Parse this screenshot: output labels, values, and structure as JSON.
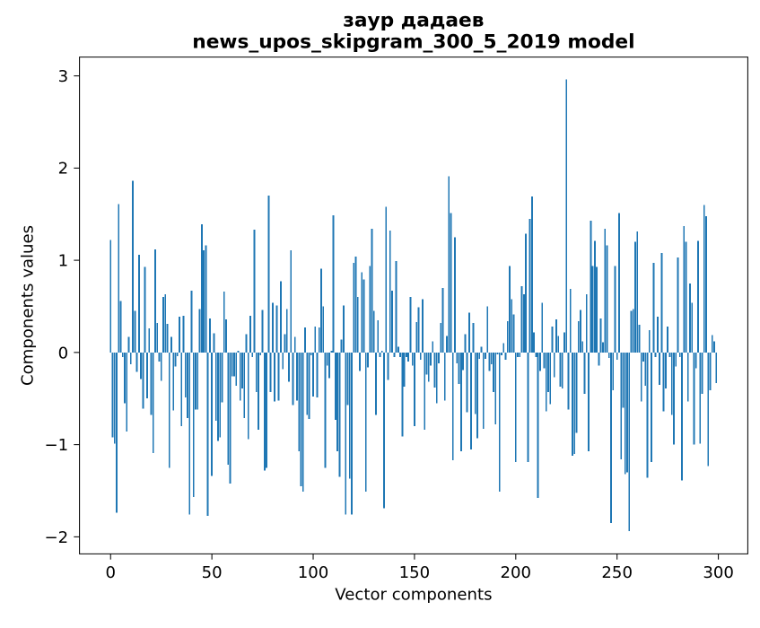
{
  "chart_data": {
    "type": "bar",
    "title": "заур дадаев",
    "subtitle": "news_upos_skipgram_300_5_2019 model",
    "xlabel": "Vector components",
    "ylabel": "Components values",
    "x_tick_labels": [
      "0",
      "50",
      "100",
      "150",
      "200",
      "250",
      "300"
    ],
    "x_tick_values": [
      0,
      50,
      100,
      150,
      200,
      250,
      300
    ],
    "y_tick_labels": [
      "−2",
      "−1",
      "0",
      "1",
      "2",
      "3"
    ],
    "y_tick_values": [
      -2,
      -1,
      0,
      1,
      2,
      3
    ],
    "xlim": [
      -15.39,
      314.39
    ],
    "ylim": [
      -2.185,
      3.205
    ],
    "bar_color": "#1f77b4",
    "bar_width": 0.8,
    "n_components": 300,
    "grid": false,
    "legend": null,
    "values": [
      1.22,
      -0.92,
      -0.99,
      -1.74,
      1.61,
      0.56,
      -0.05,
      -0.55,
      -0.86,
      0.17,
      -0.13,
      1.86,
      0.45,
      -0.21,
      1.06,
      -0.29,
      -0.61,
      0.93,
      -0.5,
      0.26,
      -0.68,
      -1.09,
      1.12,
      0.32,
      -0.1,
      -0.31,
      0.6,
      0.63,
      0.31,
      -1.25,
      0.17,
      -0.63,
      -0.15,
      -0.04,
      0.39,
      -0.8,
      0.4,
      -0.49,
      -0.71,
      -1.76,
      0.67,
      -1.57,
      -0.62,
      -0.62,
      0.47,
      1.39,
      1.11,
      1.16,
      -1.77,
      0.37,
      -1.34,
      0.21,
      -0.74,
      -0.96,
      -0.92,
      -0.54,
      0.66,
      0.36,
      -1.22,
      -1.42,
      -0.26,
      -0.26,
      -0.36,
      0.02,
      -0.52,
      -0.39,
      -0.71,
      0.2,
      -0.94,
      0.4,
      -0.05,
      1.33,
      -0.43,
      -0.84,
      -0.03,
      0.46,
      -1.28,
      -1.25,
      1.7,
      -0.43,
      0.54,
      -0.53,
      0.51,
      -0.52,
      0.77,
      -0.18,
      0.2,
      0.47,
      -0.32,
      1.11,
      -0.57,
      0.17,
      -0.52,
      -1.07,
      -1.45,
      -1.51,
      0.27,
      -0.68,
      -0.72,
      -0.03,
      -0.48,
      0.28,
      -0.49,
      0.27,
      0.91,
      0.5,
      -1.25,
      -0.14,
      -0.28,
      0.02,
      1.49,
      -0.73,
      -1.07,
      -1.35,
      0.14,
      0.51,
      -1.76,
      -0.57,
      -1.37,
      -1.76,
      0.97,
      1.04,
      0.6,
      -0.2,
      0.87,
      0.79,
      -1.51,
      -0.16,
      0.94,
      1.34,
      0.45,
      -0.68,
      0.35,
      -0.05,
      0.02,
      -1.69,
      1.58,
      -0.3,
      1.32,
      0.67,
      -0.05,
      0.99,
      0.06,
      -0.05,
      -0.91,
      -0.37,
      -0.05,
      -0.1,
      0.6,
      -0.14,
      -0.8,
      0.33,
      0.49,
      -0.08,
      0.58,
      -0.84,
      -0.24,
      -0.32,
      -0.14,
      0.12,
      -0.38,
      -0.55,
      -0.12,
      0.32,
      0.7,
      -0.52,
      0.18,
      1.91,
      1.51,
      -1.17,
      1.25,
      -0.12,
      -0.34,
      -1.07,
      -0.19,
      0.2,
      -0.65,
      0.43,
      -1.05,
      0.32,
      -0.67,
      -0.93,
      -0.07,
      0.06,
      -0.83,
      -0.07,
      0.5,
      -0.2,
      -0.13,
      -0.43,
      -0.78,
      -0.02,
      -1.51,
      -0.03,
      0.1,
      -0.08,
      0.34,
      0.94,
      0.58,
      0.41,
      -1.19,
      -0.05,
      -0.05,
      0.72,
      0.63,
      1.29,
      -1.19,
      1.45,
      1.69,
      0.22,
      -0.05,
      -1.58,
      -0.2,
      0.54,
      -0.17,
      -0.64,
      -0.43,
      -0.56,
      0.28,
      -0.27,
      0.36,
      0.18,
      -0.37,
      -0.39,
      0.22,
      2.96,
      -0.62,
      0.69,
      -1.12,
      -1.1,
      -0.87,
      0.34,
      0.46,
      0.12,
      -0.45,
      0.63,
      -1.07,
      1.43,
      0.94,
      1.21,
      0.93,
      -0.14,
      0.37,
      0.11,
      1.34,
      1.16,
      -0.06,
      -1.85,
      -0.41,
      0.94,
      -0.08,
      1.51,
      -1.16,
      -0.6,
      -1.32,
      -1.3,
      -1.94,
      0.45,
      0.47,
      1.2,
      1.31,
      0.3,
      -0.53,
      -0.1,
      -0.36,
      -1.36,
      0.24,
      -1.19,
      0.97,
      -0.05,
      0.39,
      -0.35,
      1.08,
      -0.64,
      -0.39,
      0.28,
      -0.05,
      -0.68,
      -1.0,
      -0.15,
      1.03,
      -0.05,
      -1.39,
      1.37,
      1.2,
      -0.53,
      0.75,
      0.54,
      -1.0,
      -0.17,
      1.21,
      -0.99,
      -0.45,
      1.6,
      1.48,
      -1.23,
      -0.41,
      0.19,
      0.12,
      -0.33
    ]
  }
}
